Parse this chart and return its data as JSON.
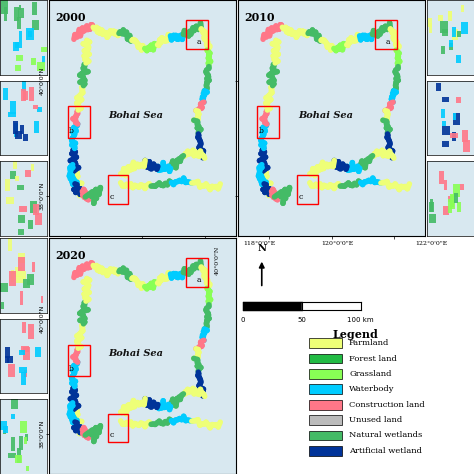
{
  "legend_items": [
    {
      "label": "Farmland",
      "color": "#EEFF77"
    },
    {
      "label": "Forest land",
      "color": "#22BB44"
    },
    {
      "label": "Grassland",
      "color": "#88FF55"
    },
    {
      "label": "Waterbody",
      "color": "#00CCFF"
    },
    {
      "label": "Construction land",
      "color": "#FF7788"
    },
    {
      "label": "Unused land",
      "color": "#BBBBBB"
    },
    {
      "label": "Natural wetlands",
      "color": "#44BB66"
    },
    {
      "label": "Artificial wetland",
      "color": "#003399"
    }
  ],
  "bg_color": "#FFFFFF",
  "sea_color": "#D8E8F0",
  "years": [
    "2000",
    "2010",
    "2020"
  ]
}
